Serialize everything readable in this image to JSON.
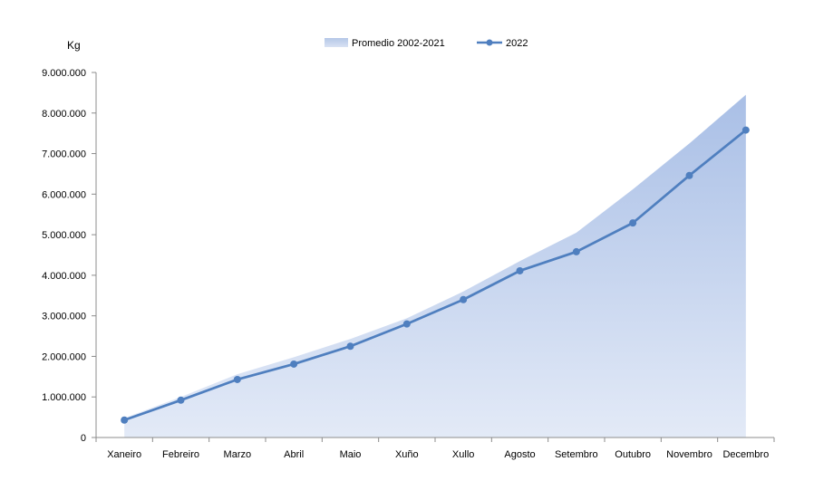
{
  "chart_data": {
    "type": "area",
    "ylabel": "Kg",
    "categories": [
      "Xaneiro",
      "Febreiro",
      "Marzo",
      "Abril",
      "Maio",
      "Xuño",
      "Xullo",
      "Agosto",
      "Setembro",
      "Outubro",
      "Novembro",
      "Decembro"
    ],
    "ylim": [
      0,
      9000000
    ],
    "yticks": [
      0,
      1000000,
      2000000,
      3000000,
      4000000,
      5000000,
      6000000,
      7000000,
      8000000,
      9000000
    ],
    "ytick_labels": [
      "0",
      "1.000.000",
      "2.000.000",
      "3.000.000",
      "4.000.000",
      "5.000.000",
      "6.000.000",
      "7.000.000",
      "8.000.000",
      "9.000.000"
    ],
    "grid": false,
    "legend_position": "top",
    "series": [
      {
        "name": "Promedio 2002-2021",
        "type": "area",
        "color": "#b4c7e7",
        "values": [
          480000,
          1000000,
          1560000,
          1980000,
          2430000,
          2940000,
          3600000,
          4350000,
          5050000,
          6120000,
          7250000,
          8450000
        ]
      },
      {
        "name": "2022",
        "type": "line",
        "color": "#4f7fbf",
        "values": [
          430000,
          920000,
          1430000,
          1810000,
          2250000,
          2800000,
          3400000,
          4110000,
          4580000,
          5290000,
          6460000,
          7580000
        ]
      }
    ]
  }
}
